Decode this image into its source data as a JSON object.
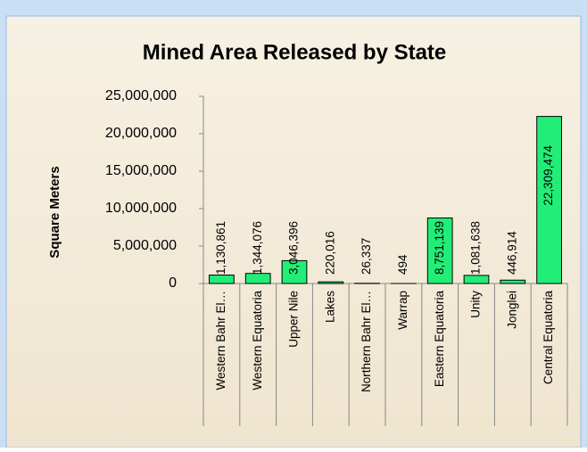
{
  "chart_data": {
    "type": "bar",
    "title": "Mined Area Released by State",
    "y_label": "Square Meters",
    "categories": [
      "Western Bahr El…",
      "Western Equatoria",
      "Upper Nile",
      "Lakes",
      "Northern Bahr El…",
      "Warrap",
      "Eastern Equatoria",
      "Unity",
      "Jonglei",
      "Central Equatoria"
    ],
    "values": [
      1130861,
      1344076,
      3046396,
      220016,
      26337,
      494,
      8751139,
      1081638,
      446914,
      22309474
    ],
    "value_labels": [
      "1,130,861",
      "1,344,076",
      "3,046,396",
      "220,016",
      "26,337",
      "494",
      "8,751,139",
      "1,081,638",
      "446,914",
      "22,309,474"
    ],
    "color": "#22ee77",
    "ylim": [
      0,
      25000000
    ],
    "yticks": [
      0,
      {
        "value": 5000000,
        "label": "5,000,000"
      },
      {
        "value": 10000000,
        "label": "10,000,000"
      },
      {
        "value": 15000000,
        "label": "15,000,000"
      },
      {
        "value": 20000000,
        "label": "20,000,000"
      },
      {
        "value": 25000000,
        "label": "25,000,000"
      }
    ],
    "grid": false
  }
}
